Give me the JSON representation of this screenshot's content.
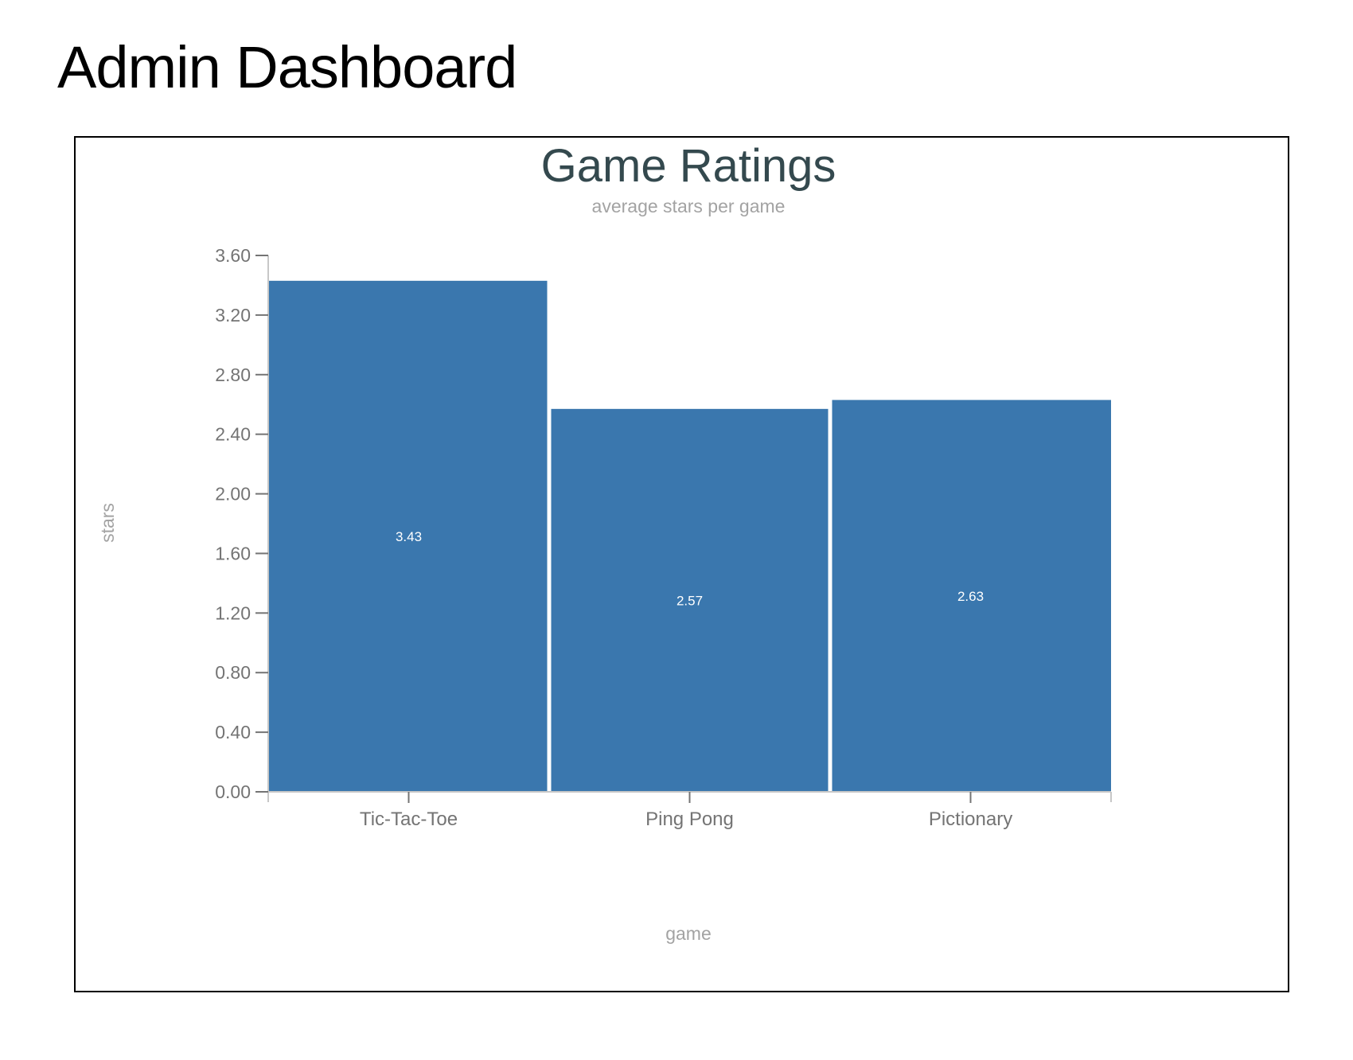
{
  "page": {
    "title": "Admin Dashboard"
  },
  "colors": {
    "bar": "#3a77ae",
    "title": "#34494e",
    "axis_text": "#747474",
    "axis_label": "#a3a3a3",
    "axis_line": "#c7c7c7",
    "bar_label": "#ffffff"
  },
  "chart_data": {
    "type": "bar",
    "title": "Game Ratings",
    "subtitle": "average stars per game",
    "xlabel": "game",
    "ylabel": "stars",
    "categories": [
      "Tic-Tac-Toe",
      "Ping Pong",
      "Pictionary"
    ],
    "values": [
      3.43,
      2.57,
      2.63
    ],
    "value_labels": [
      "3.43",
      "2.57",
      "2.63"
    ],
    "ylim": [
      0,
      3.6
    ],
    "yticks": [
      0,
      0.4,
      0.8,
      1.2,
      1.6,
      2.0,
      2.4,
      2.8,
      3.2,
      3.6
    ],
    "ytick_labels": [
      "0.00",
      "0.40",
      "0.80",
      "1.20",
      "1.60",
      "2.00",
      "2.40",
      "2.80",
      "3.20",
      "3.60"
    ],
    "grid": false,
    "legend": "none"
  }
}
